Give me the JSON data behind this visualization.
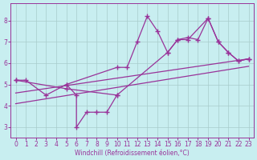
{
  "series1_x": [
    0,
    1,
    3,
    5,
    6,
    6,
    7,
    8,
    9,
    10
  ],
  "series1_y": [
    5.2,
    5.2,
    4.5,
    5.0,
    4.5,
    3.0,
    3.7,
    3.7,
    3.7,
    4.5
  ],
  "series2_x": [
    5,
    10,
    11,
    12,
    13,
    14,
    15,
    16,
    17,
    19,
    20,
    21,
    22,
    23
  ],
  "series2_y": [
    5.0,
    5.8,
    5.8,
    7.0,
    8.2,
    7.5,
    6.5,
    7.1,
    7.1,
    8.1,
    7.0,
    6.5,
    6.1,
    6.2
  ],
  "series3_x": [
    0,
    5,
    10,
    15,
    16,
    17,
    18,
    19,
    20,
    21,
    22,
    23
  ],
  "series3_y": [
    5.2,
    4.8,
    4.5,
    6.5,
    7.1,
    7.2,
    7.1,
    8.1,
    7.0,
    6.5,
    6.1,
    6.2
  ],
  "line1_x": [
    0,
    23
  ],
  "line1_y": [
    4.6,
    6.2
  ],
  "line2_x": [
    0,
    23
  ],
  "line2_y": [
    4.1,
    5.85
  ],
  "color": "#993399",
  "bg_color": "#C8EEF0",
  "grid_color": "#A8CCCC",
  "xlabel": "Windchill (Refroidissement éolien,°C)",
  "ylim": [
    2.5,
    8.8
  ],
  "xlim": [
    -0.5,
    23.5
  ],
  "yticks": [
    3,
    4,
    5,
    6,
    7,
    8
  ],
  "xticks": [
    0,
    1,
    2,
    3,
    4,
    5,
    6,
    7,
    8,
    9,
    10,
    11,
    12,
    13,
    14,
    15,
    16,
    17,
    18,
    19,
    20,
    21,
    22,
    23
  ],
  "figsize": [
    3.2,
    2.0
  ],
  "dpi": 100
}
